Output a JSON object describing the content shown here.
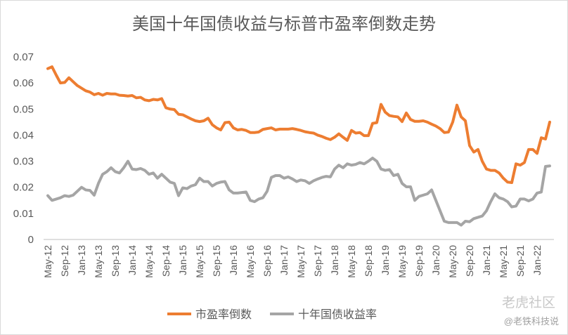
{
  "chart_data": {
    "type": "line",
    "title": "美国十年国债收益与标普市盈率倒数走势",
    "categories": [
      "May-12",
      null,
      null,
      null,
      "Sep-12",
      null,
      null,
      null,
      "Jan-13",
      null,
      null,
      null,
      "May-13",
      null,
      null,
      null,
      "Sep-13",
      null,
      null,
      null,
      "Jan-14",
      null,
      null,
      null,
      "May-14",
      null,
      null,
      null,
      "Sep-14",
      null,
      null,
      null,
      "Jan-15",
      null,
      null,
      null,
      "May-15",
      null,
      null,
      null,
      "Sep-15",
      null,
      null,
      null,
      "Jan-16",
      null,
      null,
      null,
      "May-16",
      null,
      null,
      null,
      "Sep-16",
      null,
      null,
      null,
      "Jan-17",
      null,
      null,
      null,
      "May-17",
      null,
      null,
      null,
      "Sep-17",
      null,
      null,
      null,
      "Jan-18",
      null,
      null,
      null,
      "May-18",
      null,
      null,
      null,
      "Sep-18",
      null,
      null,
      null,
      "Jan-19",
      null,
      null,
      null,
      "May-19",
      null,
      null,
      null,
      "Sep-19",
      null,
      null,
      null,
      "Jan-20",
      null,
      null,
      null,
      "May-20",
      null,
      null,
      null,
      "Sep-20",
      null,
      null,
      null,
      "Jan-21",
      null,
      null,
      null,
      "May-21",
      null,
      null,
      null,
      "Sep-21",
      null,
      null,
      null,
      "Jan-22",
      null,
      null,
      null
    ],
    "series": [
      {
        "name": "市盈率倒数",
        "color": "#ed7d31",
        "values": [
          0.0655,
          0.0662,
          0.063,
          0.06,
          0.0602,
          0.062,
          0.0605,
          0.059,
          0.058,
          0.057,
          0.0565,
          0.0555,
          0.056,
          0.0553,
          0.056,
          0.0558,
          0.0558,
          0.0553,
          0.0552,
          0.055,
          0.0552,
          0.0543,
          0.0545,
          0.0535,
          0.0532,
          0.0537,
          0.0535,
          0.054,
          0.0505,
          0.05,
          0.0498,
          0.048,
          0.0478,
          0.047,
          0.0462,
          0.0455,
          0.0452,
          0.0455,
          0.0465,
          0.044,
          0.0428,
          0.042,
          0.0448,
          0.045,
          0.0428,
          0.042,
          0.0422,
          0.0418,
          0.041,
          0.041,
          0.0412,
          0.0422,
          0.0425,
          0.0428,
          0.042,
          0.0423,
          0.0423,
          0.0423,
          0.0425,
          0.0422,
          0.0418,
          0.0413,
          0.041,
          0.0408,
          0.04,
          0.0395,
          0.0388,
          0.0383,
          0.0392,
          0.0405,
          0.0392,
          0.038,
          0.0418,
          0.0408,
          0.041,
          0.0398,
          0.0398,
          0.0445,
          0.0448,
          0.0518,
          0.0488,
          0.0475,
          0.0472,
          0.047,
          0.0452,
          0.0485,
          0.046,
          0.0453,
          0.0453,
          0.0455,
          0.045,
          0.0442,
          0.0435,
          0.0425,
          0.041,
          0.0412,
          0.045,
          0.0515,
          0.047,
          0.0455,
          0.036,
          0.0335,
          0.0345,
          0.03,
          0.027,
          0.0265,
          0.0265,
          0.0255,
          0.0235,
          0.022,
          0.0218,
          0.029,
          0.0285,
          0.0295,
          0.0345,
          0.0345,
          0.033,
          0.039,
          0.0385,
          0.045
        ]
      },
      {
        "name": "十年国债收益率",
        "color": "#a5a5a5",
        "values": [
          0.0168,
          0.015,
          0.0155,
          0.016,
          0.0168,
          0.0165,
          0.017,
          0.0185,
          0.02,
          0.019,
          0.0188,
          0.017,
          0.0215,
          0.025,
          0.026,
          0.0275,
          0.026,
          0.0255,
          0.0275,
          0.03,
          0.027,
          0.0268,
          0.0272,
          0.0265,
          0.025,
          0.0255,
          0.0235,
          0.025,
          0.0235,
          0.022,
          0.0215,
          0.0168,
          0.0198,
          0.0195,
          0.0205,
          0.021,
          0.0235,
          0.0222,
          0.0222,
          0.0205,
          0.0215,
          0.022,
          0.0222,
          0.019,
          0.0178,
          0.0178,
          0.018,
          0.0182,
          0.015,
          0.0145,
          0.0155,
          0.016,
          0.0185,
          0.0238,
          0.0245,
          0.0245,
          0.0235,
          0.024,
          0.0232,
          0.0222,
          0.0228,
          0.0225,
          0.0215,
          0.0225,
          0.0232,
          0.0238,
          0.0242,
          0.024,
          0.027,
          0.0285,
          0.0275,
          0.029,
          0.0285,
          0.0288,
          0.0295,
          0.029,
          0.03,
          0.0312,
          0.03,
          0.027,
          0.0265,
          0.0268,
          0.0245,
          0.025,
          0.0215,
          0.0202,
          0.0202,
          0.015,
          0.0165,
          0.017,
          0.0175,
          0.019,
          0.015,
          0.011,
          0.007,
          0.0065,
          0.0065,
          0.0065,
          0.0055,
          0.007,
          0.0068,
          0.008,
          0.0085,
          0.009,
          0.011,
          0.0145,
          0.0175,
          0.016,
          0.0155,
          0.0145,
          0.0125,
          0.0128,
          0.0155,
          0.0155,
          0.0148,
          0.0155,
          0.0178,
          0.0182,
          0.028,
          0.0282
        ]
      }
    ],
    "ylim": [
      0,
      0.07
    ],
    "yticks": [
      0,
      0.01,
      0.02,
      0.03,
      0.04,
      0.05,
      0.06,
      0.07
    ],
    "grid": false,
    "legend": "bottom",
    "watermark": "老虎社区",
    "watermark_author": "@老铁科技说"
  }
}
